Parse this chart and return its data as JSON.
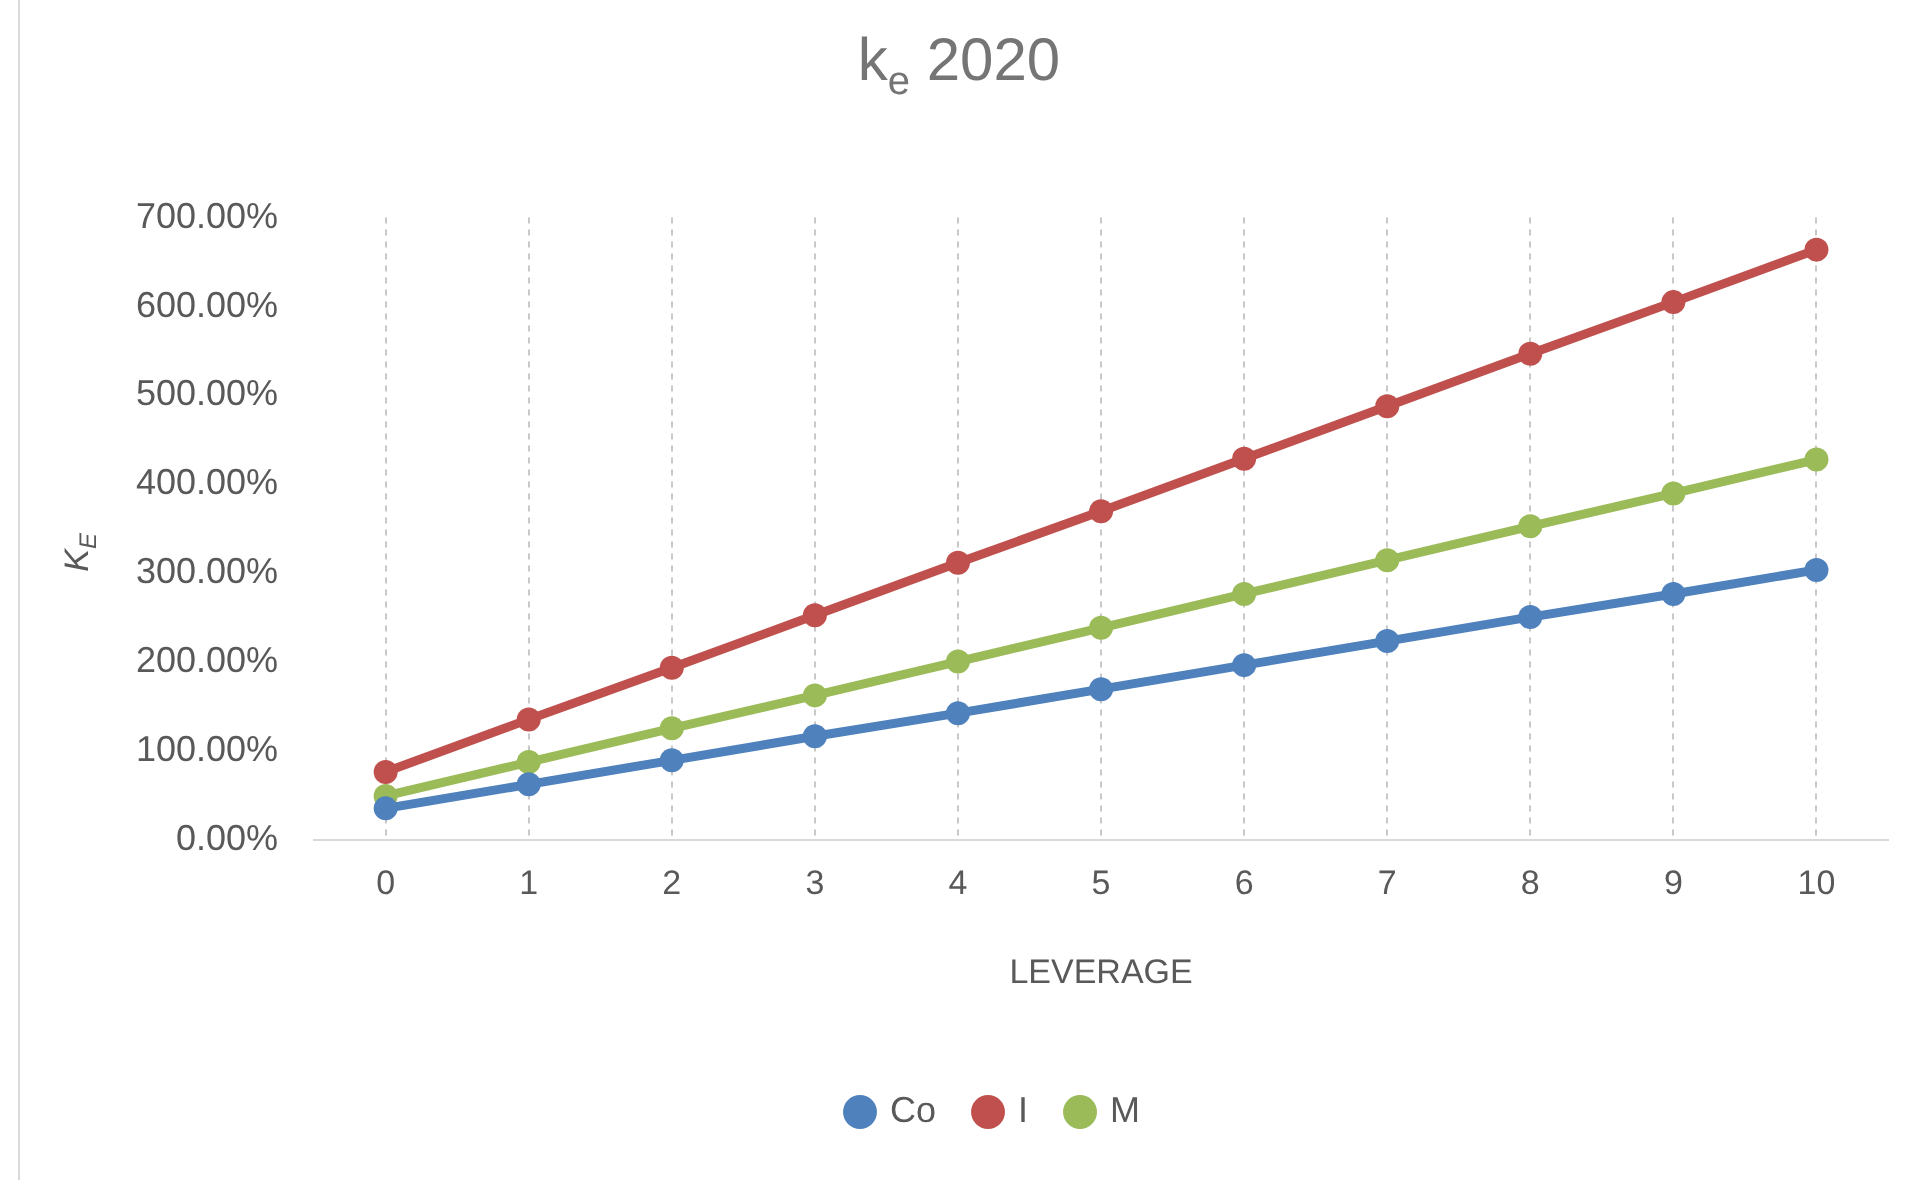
{
  "chart_data": {
    "type": "line",
    "title": "k$_{e}$ 2020",
    "xlabel": "LEVERAGE",
    "ylabel": "K$_{E}$",
    "categories": [
      "0",
      "1",
      "2",
      "3",
      "4",
      "5",
      "6",
      "7",
      "8",
      "9",
      "10"
    ],
    "series": [
      {
        "name": "Co",
        "color": "#4f81bd",
        "values": [
          36,
          63,
          90,
          117,
          143,
          170,
          197,
          224,
          251,
          277,
          304
        ]
      },
      {
        "name": "I",
        "color": "#c0504d",
        "values": [
          77,
          136,
          194,
          253,
          312,
          370,
          429,
          488,
          547,
          605,
          664
        ]
      },
      {
        "name": "M",
        "color": "#9bbb59",
        "values": [
          50,
          88,
          126,
          163,
          201,
          239,
          277,
          315,
          353,
          390,
          428
        ]
      }
    ],
    "ylim": [
      0,
      700
    ],
    "yticks": [
      {
        "value": 0,
        "label": "0.00%"
      },
      {
        "value": 100,
        "label": "100.00%"
      },
      {
        "value": 200,
        "label": "200.00%"
      },
      {
        "value": 300,
        "label": "300.00%"
      },
      {
        "value": 400,
        "label": "400.00%"
      },
      {
        "value": 500,
        "label": "500.00%"
      },
      {
        "value": 600,
        "label": "600.00%"
      },
      {
        "value": 700,
        "label": "700.00%"
      }
    ],
    "grid": "x",
    "legend": "bottom",
    "marker": "circle",
    "line_style": "solid"
  }
}
